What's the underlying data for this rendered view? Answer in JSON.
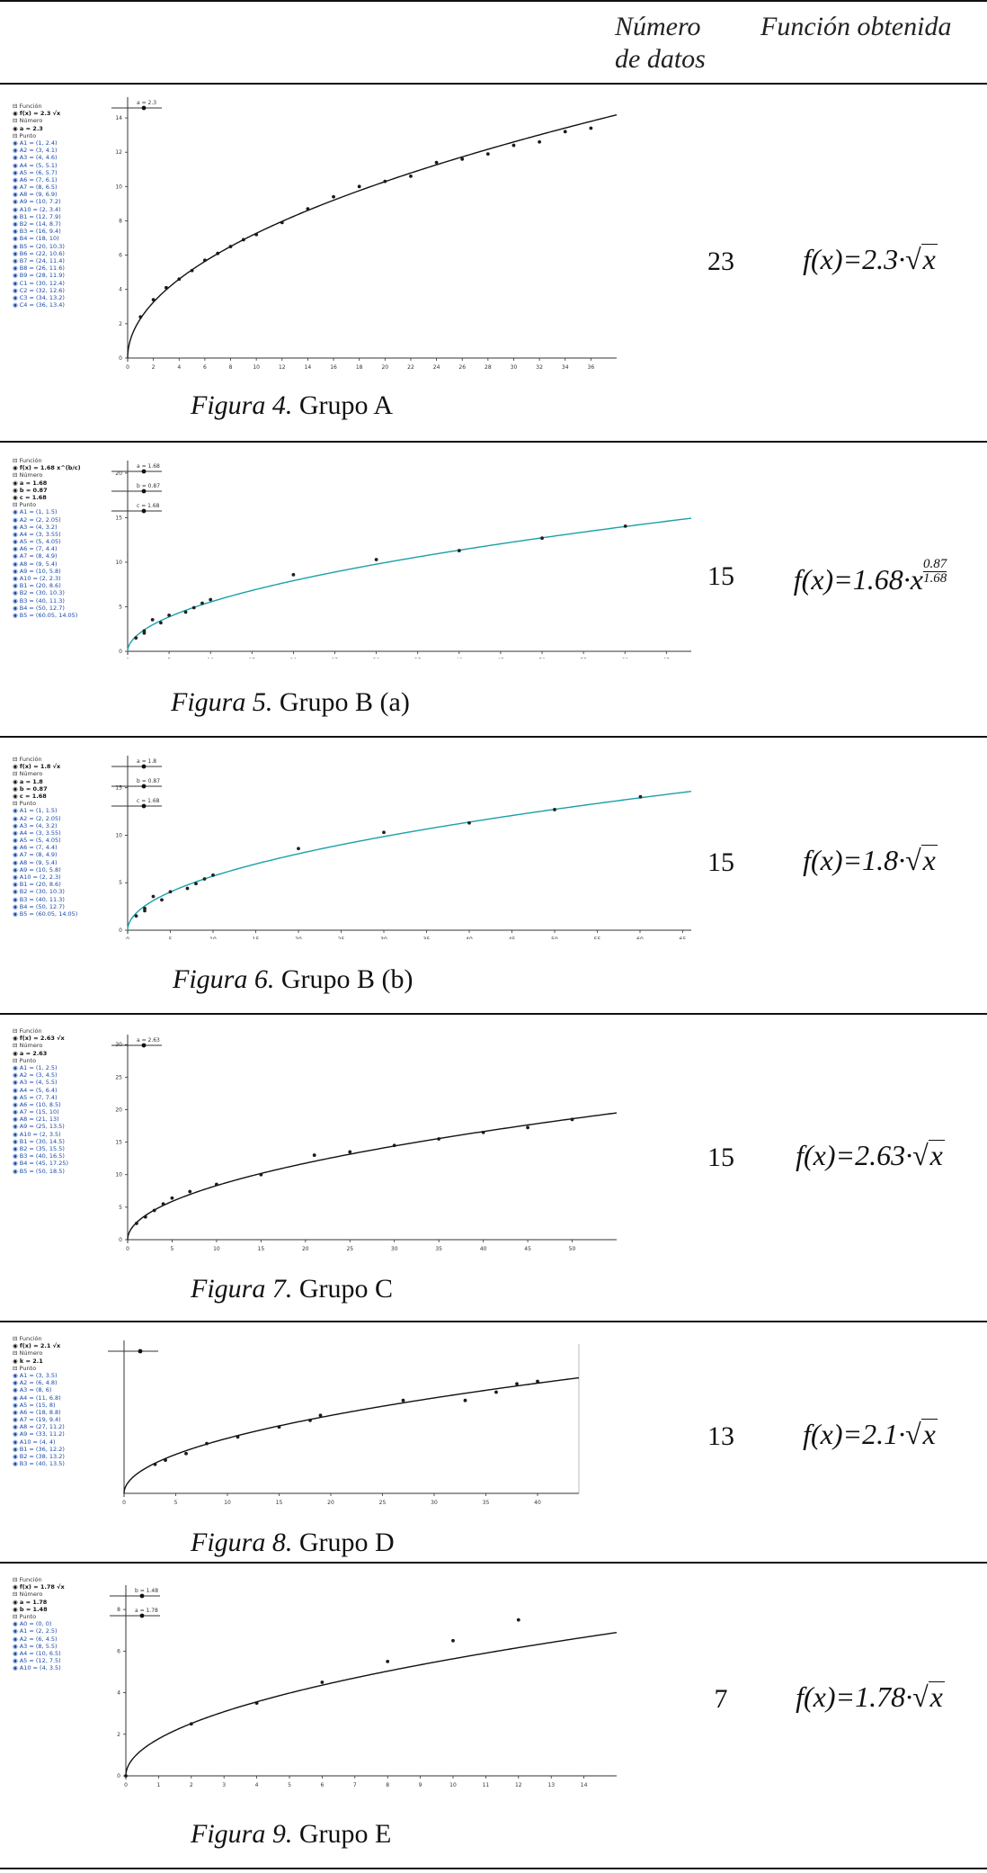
{
  "header": {
    "col_datos_line1": "Número",
    "col_datos_line2": "de datos",
    "col_funcion": "Función obtenida"
  },
  "rows": [
    {
      "fig_label": "Figura 4.",
      "fig_title": "Grupo A",
      "n_datos": "23",
      "func_prefix": "f(x)=2.3·",
      "algebra": {
        "cat_funcion": "Función",
        "funcion": "f(x) = 2.3 √x",
        "cat_numero": "Número",
        "numeros": [
          "a = 2.3"
        ],
        "cat_punto": "Punto",
        "puntos": [
          "A1 = (1, 2.4)",
          "A2 = (3, 4.1)",
          "A3 = (4, 4.6)",
          "A4 = (5, 5.1)",
          "A5 = (6, 5.7)",
          "A6 = (7, 6.1)",
          "A7 = (8, 6.5)",
          "A8 = (9, 6.9)",
          "A9 = (10, 7.2)",
          "A10 = (2, 3.4)",
          "B1 = (12, 7.9)",
          "B2 = (14, 8.7)",
          "B3 = (16, 9.4)",
          "B4 = (18, 10)",
          "B5 = (20, 10.3)",
          "B6 = (22, 10.6)",
          "B7 = (24, 11.4)",
          "B8 = (26, 11.6)",
          "B9 = (28, 11.9)",
          "C1 = (30, 12.4)",
          "C2 = (32, 12.6)",
          "C3 = (34, 13.2)",
          "C4 = (36, 13.4)"
        ]
      },
      "chart_data": {
        "type": "scatter",
        "curve": "2.3*sqrt(x)",
        "xlim": [
          0,
          38
        ],
        "ylim": [
          0,
          15
        ],
        "xticks": [
          0,
          2,
          4,
          6,
          8,
          10,
          12,
          14,
          16,
          18,
          20,
          22,
          24,
          26,
          28,
          30,
          32,
          34,
          36
        ],
        "yticks": [
          0,
          2,
          4,
          6,
          8,
          10,
          12,
          14
        ],
        "sliders": [
          "a = 2.3"
        ],
        "x": [
          1,
          2,
          3,
          4,
          5,
          6,
          7,
          8,
          9,
          10,
          12,
          14,
          16,
          18,
          20,
          22,
          24,
          26,
          28,
          30,
          32,
          34,
          36
        ],
        "y": [
          2.4,
          3.4,
          4.1,
          4.6,
          5.1,
          5.7,
          6.1,
          6.5,
          6.9,
          7.2,
          7.9,
          8.7,
          9.4,
          10,
          10.3,
          10.6,
          11.4,
          11.6,
          11.9,
          12.4,
          12.6,
          13.2,
          13.4
        ]
      }
    },
    {
      "fig_label": "Figura 5.",
      "fig_title": "Grupo B (a)",
      "n_datos": "15",
      "func_prefix": "f(x)=1.68·x",
      "exp_num": "0.87",
      "exp_den": "1.68",
      "algebra": {
        "cat_funcion": "Función",
        "funcion": "f(x) = 1.68 x^(b/c)",
        "cat_numero": "Número",
        "numeros": [
          "a = 1.68",
          "b = 0.87",
          "c = 1.68"
        ],
        "cat_punto": "Punto",
        "puntos": [
          "A1 = (1, 1.5)",
          "A2 = (2, 2.05)",
          "A3 = (4, 3.2)",
          "A4 = (3, 3.55)",
          "A5 = (5, 4.05)",
          "A6 = (7, 4.4)",
          "A7 = (8, 4.9)",
          "A8 = (9, 5.4)",
          "A9 = (10, 5.8)",
          "A10 = (2, 2.3)",
          "B1 = (20, 8.6)",
          "B2 = (30, 10.3)",
          "B3 = (40, 11.3)",
          "B4 = (50, 12.7)",
          "B5 = (60.05, 14.05)"
        ]
      },
      "chart_data": {
        "type": "scatter",
        "curve": "1.68*x^(0.87/1.68)",
        "xlim": [
          0,
          68
        ],
        "ylim": [
          0,
          21
        ],
        "xticks": [
          0,
          5,
          10,
          15,
          20,
          25,
          30,
          35,
          40,
          45,
          50,
          55,
          60,
          65
        ],
        "yticks": [
          0,
          5,
          10,
          15,
          20
        ],
        "sliders": [
          "a = 1.68",
          "b = 0.87",
          "c = 1.68"
        ],
        "x": [
          1,
          2,
          2,
          3,
          4,
          5,
          7,
          8,
          9,
          10,
          20,
          30,
          40,
          50,
          60.05
        ],
        "y": [
          1.5,
          2.05,
          2.3,
          3.55,
          3.2,
          4.05,
          4.4,
          4.9,
          5.4,
          5.8,
          8.6,
          10.3,
          11.3,
          12.7,
          14.05
        ]
      }
    },
    {
      "fig_label": "Figura 6.",
      "fig_title": "Grupo B (b)",
      "n_datos": "15",
      "func_prefix": "f(x)=1.8·",
      "algebra": {
        "cat_funcion": "Función",
        "funcion": "f(x) = 1.8 √x",
        "cat_numero": "Número",
        "numeros": [
          "a = 1.8",
          "b = 0.87",
          "c = 1.68"
        ],
        "cat_punto": "Punto",
        "puntos": [
          "A1 = (1, 1.5)",
          "A2 = (2, 2.05)",
          "A3 = (4, 3.2)",
          "A4 = (3, 3.55)",
          "A5 = (5, 4.05)",
          "A6 = (7, 4.4)",
          "A7 = (8, 4.9)",
          "A8 = (9, 5.4)",
          "A9 = (10, 5.8)",
          "A10 = (2, 2.3)",
          "B1 = (20, 8.6)",
          "B2 = (30, 10.3)",
          "B3 = (40, 11.3)",
          "B4 = (50, 12.7)",
          "B5 = (60.05, 14.05)"
        ]
      },
      "chart_data": {
        "type": "scatter",
        "curve": "1.8*sqrt(x)",
        "xlim": [
          0,
          66
        ],
        "ylim": [
          0,
          18
        ],
        "xticks": [
          0,
          5,
          10,
          15,
          20,
          25,
          30,
          35,
          40,
          45,
          50,
          55,
          60,
          65
        ],
        "yticks": [
          0,
          5,
          10,
          15
        ],
        "sliders": [
          "a = 1.8",
          "b = 0.87",
          "c = 1.68"
        ],
        "x": [
          1,
          2,
          2,
          3,
          4,
          5,
          7,
          8,
          9,
          10,
          20,
          30,
          40,
          50,
          60.05
        ],
        "y": [
          1.5,
          2.05,
          2.3,
          3.55,
          3.2,
          4.05,
          4.4,
          4.9,
          5.4,
          5.8,
          8.6,
          10.3,
          11.3,
          12.7,
          14.05
        ]
      }
    },
    {
      "fig_label": "Figura 7.",
      "fig_title": "Grupo C",
      "n_datos": "15",
      "func_prefix": "f(x)=2.63·",
      "algebra": {
        "cat_funcion": "Función",
        "funcion": "f(x) = 2.63 √x",
        "cat_numero": "Número",
        "numeros": [
          "a = 2.63"
        ],
        "cat_punto": "Punto",
        "puntos": [
          "A1 = (1, 2.5)",
          "A2 = (3, 4.5)",
          "A3 = (4, 5.5)",
          "A4 = (5, 6.4)",
          "A5 = (7, 7.4)",
          "A6 = (10, 8.5)",
          "A7 = (15, 10)",
          "A8 = (21, 13)",
          "A9 = (25, 13.5)",
          "A10 = (2, 3.5)",
          "B1 = (30, 14.5)",
          "B2 = (35, 15.5)",
          "B3 = (40, 16.5)",
          "B4 = (45, 17.25)",
          "B5 = (50, 18.5)"
        ]
      },
      "chart_data": {
        "type": "scatter",
        "curve": "2.63*sqrt(x)",
        "xlim": [
          0,
          55
        ],
        "ylim": [
          0,
          31
        ],
        "xticks": [
          0,
          5,
          10,
          15,
          20,
          25,
          30,
          35,
          40,
          45,
          50
        ],
        "yticks": [
          0,
          5,
          10,
          15,
          20,
          25,
          30
        ],
        "sliders": [
          "a = 2.63"
        ],
        "x": [
          1,
          2,
          3,
          4,
          5,
          7,
          10,
          15,
          21,
          25,
          30,
          35,
          40,
          45,
          50
        ],
        "y": [
          2.5,
          3.5,
          4.5,
          5.5,
          6.4,
          7.4,
          8.5,
          10,
          13,
          13.5,
          14.5,
          15.5,
          16.5,
          17.25,
          18.5
        ]
      }
    },
    {
      "fig_label": "Figura 8.",
      "fig_title": "Grupo D",
      "n_datos": "13",
      "func_prefix": "f(x)=2.1·",
      "algebra": {
        "cat_funcion": "Función",
        "funcion": "f(x) = 2.1 √x",
        "cat_numero": "Número",
        "numeros": [
          "k = 2.1"
        ],
        "cat_punto": "Punto",
        "puntos": [
          "A1 = (3, 3.5)",
          "A2 = (6, 4.8)",
          "A3 = (8, 6)",
          "A4 = (11, 6.8)",
          "A5 = (15, 8)",
          "A6 = (18, 8.8)",
          "A7 = (19, 9.4)",
          "A8 = (27, 11.2)",
          "A9 = (33, 11.2)",
          "A10 = (4, 4)",
          "B1 = (36, 12.2)",
          "B2 = (38, 13.2)",
          "B3 = (40, 13.5)"
        ]
      },
      "chart_data": {
        "type": "scatter",
        "curve": "2.1*sqrt(x)",
        "xlim": [
          0,
          44
        ],
        "ylim": [
          0,
          18
        ],
        "xticks": [
          0,
          5,
          10,
          15,
          20,
          25,
          30,
          35,
          40
        ],
        "yticks": [],
        "sliders": [
          ""
        ],
        "x": [
          3,
          4,
          6,
          8,
          11,
          15,
          18,
          19,
          27,
          33,
          36,
          38,
          40
        ],
        "y": [
          3.5,
          4,
          4.8,
          6,
          6.8,
          8,
          8.8,
          9.4,
          11.2,
          11.2,
          12.2,
          13.2,
          13.5
        ]
      }
    },
    {
      "fig_label": "Figura 9.",
      "fig_title": "Grupo E",
      "n_datos": "7",
      "func_prefix": "f(x)=1.78·",
      "algebra": {
        "cat_funcion": "Función",
        "funcion": "f(x) = 1.78 √x",
        "cat_numero": "Número",
        "numeros": [
          "a = 1.78",
          "b = 1.48"
        ],
        "cat_punto": "Punto",
        "puntos": [
          "A0 = (0, 0)",
          "A1 = (2, 2.5)",
          "A2 = (6, 4.5)",
          "A3 = (8, 5.5)",
          "A4 = (10, 6.5)",
          "A5 = (12, 7.5)",
          "A10 = (4, 3.5)"
        ]
      },
      "chart_data": {
        "type": "scatter",
        "curve": "1.78*sqrt(x)",
        "xlim": [
          0,
          15
        ],
        "ylim": [
          0,
          9
        ],
        "xticks": [
          0,
          1,
          2,
          3,
          4,
          5,
          6,
          7,
          8,
          9,
          10,
          11,
          12,
          13,
          14
        ],
        "yticks": [
          0,
          2,
          4,
          6,
          8
        ],
        "sliders": [
          "b = 1.48",
          "a = 1.78"
        ],
        "x": [
          0,
          2,
          4,
          6,
          8,
          10,
          12
        ],
        "y": [
          0,
          2.5,
          3.5,
          4.5,
          5.5,
          6.5,
          7.5
        ]
      }
    }
  ]
}
